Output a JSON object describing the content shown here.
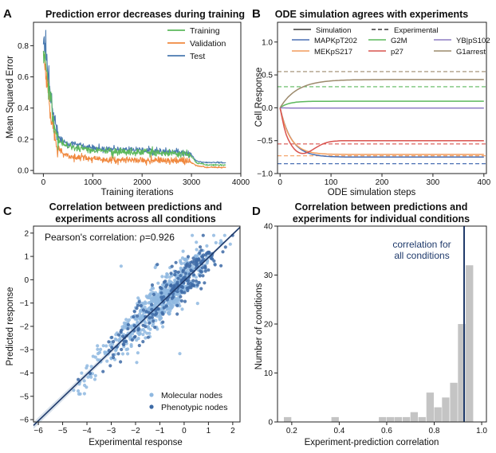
{
  "chart_data": [
    {
      "panel": "A",
      "type": "line",
      "title": "Prediction error decreases during training",
      "xlabel": "Training iterations",
      "ylabel": "Mean Squared Error",
      "xlim": [
        -200,
        4000
      ],
      "ylim": [
        -0.02,
        0.95
      ],
      "xticks": [
        0,
        1000,
        2000,
        3000,
        4000
      ],
      "yticks": [
        0.0,
        0.2,
        0.4,
        0.6,
        0.8
      ],
      "legend_position": "top-right",
      "series": [
        {
          "name": "Training",
          "color": "#5cb85c",
          "x": [
            0,
            50,
            100,
            150,
            200,
            250,
            300,
            400,
            500,
            600,
            700,
            800,
            1000,
            1200,
            1500,
            2000,
            2500,
            2900,
            3000,
            3100,
            3300,
            3700
          ],
          "y": [
            0.78,
            0.68,
            0.55,
            0.42,
            0.33,
            0.25,
            0.2,
            0.17,
            0.155,
            0.15,
            0.145,
            0.14,
            0.13,
            0.125,
            0.12,
            0.115,
            0.11,
            0.105,
            0.09,
            0.05,
            0.035,
            0.035
          ]
        },
        {
          "name": "Validation",
          "color": "#f0883e",
          "x": [
            0,
            50,
            100,
            150,
            200,
            250,
            300,
            400,
            500,
            600,
            700,
            800,
            1000,
            1200,
            1500,
            2000,
            2500,
            2900,
            3000,
            3100,
            3300,
            3700
          ],
          "y": [
            0.72,
            0.62,
            0.48,
            0.35,
            0.26,
            0.18,
            0.14,
            0.11,
            0.095,
            0.09,
            0.085,
            0.08,
            0.075,
            0.07,
            0.068,
            0.065,
            0.062,
            0.06,
            0.05,
            0.03,
            0.02,
            0.02
          ]
        },
        {
          "name": "Test",
          "color": "#4a7ab0",
          "x": [
            0,
            50,
            100,
            150,
            200,
            250,
            300,
            400,
            500,
            600,
            700,
            800,
            1000,
            1200,
            1500,
            2000,
            2500,
            2900,
            3000,
            3100,
            3300,
            3700
          ],
          "y": [
            0.85,
            0.74,
            0.6,
            0.46,
            0.36,
            0.28,
            0.22,
            0.19,
            0.17,
            0.165,
            0.16,
            0.155,
            0.145,
            0.14,
            0.135,
            0.13,
            0.12,
            0.115,
            0.1,
            0.06,
            0.05,
            0.05
          ]
        }
      ]
    },
    {
      "panel": "B",
      "type": "line",
      "title": "ODE simulation agrees with experiments",
      "xlabel": "ODE simulation steps",
      "ylabel": "Cell Response",
      "xlim": [
        -5,
        405
      ],
      "ylim": [
        -1.0,
        1.3
      ],
      "xticks": [
        0,
        100,
        200,
        300,
        400
      ],
      "yticks": [
        -1.0,
        -0.5,
        0.0,
        0.5,
        1.0
      ],
      "legend_style": {
        "simulation": "Simulation",
        "experimental": "Experimental"
      },
      "series": [
        {
          "name": "MAPKpT202",
          "color": "#4a6fb3",
          "final": -0.75,
          "experimental": -0.85,
          "rate": 0.045
        },
        {
          "name": "MEKpS217",
          "color": "#f29c5c",
          "final": -0.71,
          "experimental": -0.73,
          "rate": 0.05
        },
        {
          "name": "G2M",
          "color": "#5cb85c",
          "final": 0.1,
          "experimental": 0.32,
          "rate": 0.06
        },
        {
          "name": "p27",
          "color": "#d9534f",
          "final": -0.5,
          "experimental": -0.55,
          "rate": 0.07
        },
        {
          "name": "YB|pS102",
          "color": "#8e7cc3",
          "final": -0.005,
          "experimental": 0.0,
          "rate": 0.05
        },
        {
          "name": "G1arrest",
          "color": "#9c8a6c",
          "final": 0.43,
          "experimental": 0.55,
          "rate": 0.03
        }
      ]
    },
    {
      "panel": "C",
      "type": "scatter",
      "title": "Correlation between predictions and experiments across all conditions",
      "title_lines": [
        "Correlation between predictions and",
        "experiments across all conditions"
      ],
      "xlabel": "Experimental response",
      "ylabel": "Predicted response",
      "xlim": [
        -6.2,
        2.3
      ],
      "ylim": [
        -6.1,
        2.3
      ],
      "xticks": [
        -6,
        -5,
        -4,
        -3,
        -2,
        -1,
        0,
        1,
        2
      ],
      "yticks": [
        -6,
        -5,
        -4,
        -3,
        -2,
        -1,
        0,
        1,
        2
      ],
      "annotation": "Pearson's correlation: ρ=0.926",
      "fit_line": {
        "slope": 1.0,
        "intercept": -0.05
      },
      "series": [
        {
          "name": "Molecular nodes",
          "color": "#8fb8e0",
          "count": 700
        },
        {
          "name": "Phenotypic nodes",
          "color": "#3d6aa6",
          "count": 220
        }
      ]
    },
    {
      "panel": "D",
      "type": "bar",
      "title": "Correlation between predictions and experiments for individual conditions",
      "title_lines": [
        "Correlation between predictions and",
        "experiments for individual conditions"
      ],
      "xlabel": "Experiment-prediction correlation",
      "ylabel": "Number of conditions",
      "xlim": [
        0.14,
        1.02
      ],
      "ylim": [
        0,
        40
      ],
      "xticks": [
        0.2,
        0.4,
        0.6,
        0.8,
        1.0
      ],
      "yticks": [
        0,
        10,
        20,
        30,
        40
      ],
      "bin_width": 0.0333,
      "bins": [
        {
          "left": 0.167,
          "count": 1
        },
        {
          "left": 0.367,
          "count": 1
        },
        {
          "left": 0.567,
          "count": 1
        },
        {
          "left": 0.6,
          "count": 1
        },
        {
          "left": 0.633,
          "count": 1
        },
        {
          "left": 0.667,
          "count": 1
        },
        {
          "left": 0.7,
          "count": 2
        },
        {
          "left": 0.733,
          "count": 1
        },
        {
          "left": 0.767,
          "count": 6
        },
        {
          "left": 0.8,
          "count": 3
        },
        {
          "left": 0.833,
          "count": 5
        },
        {
          "left": 0.867,
          "count": 8
        },
        {
          "left": 0.9,
          "count": 20
        },
        {
          "left": 0.933,
          "count": 32
        }
      ],
      "vline": {
        "x": 0.926,
        "label_lines": [
          "correlation for",
          "all conditions"
        ],
        "color": "#1f3a6b"
      }
    }
  ],
  "panel_labels": {
    "A": "A",
    "B": "B",
    "C": "C",
    "D": "D"
  }
}
